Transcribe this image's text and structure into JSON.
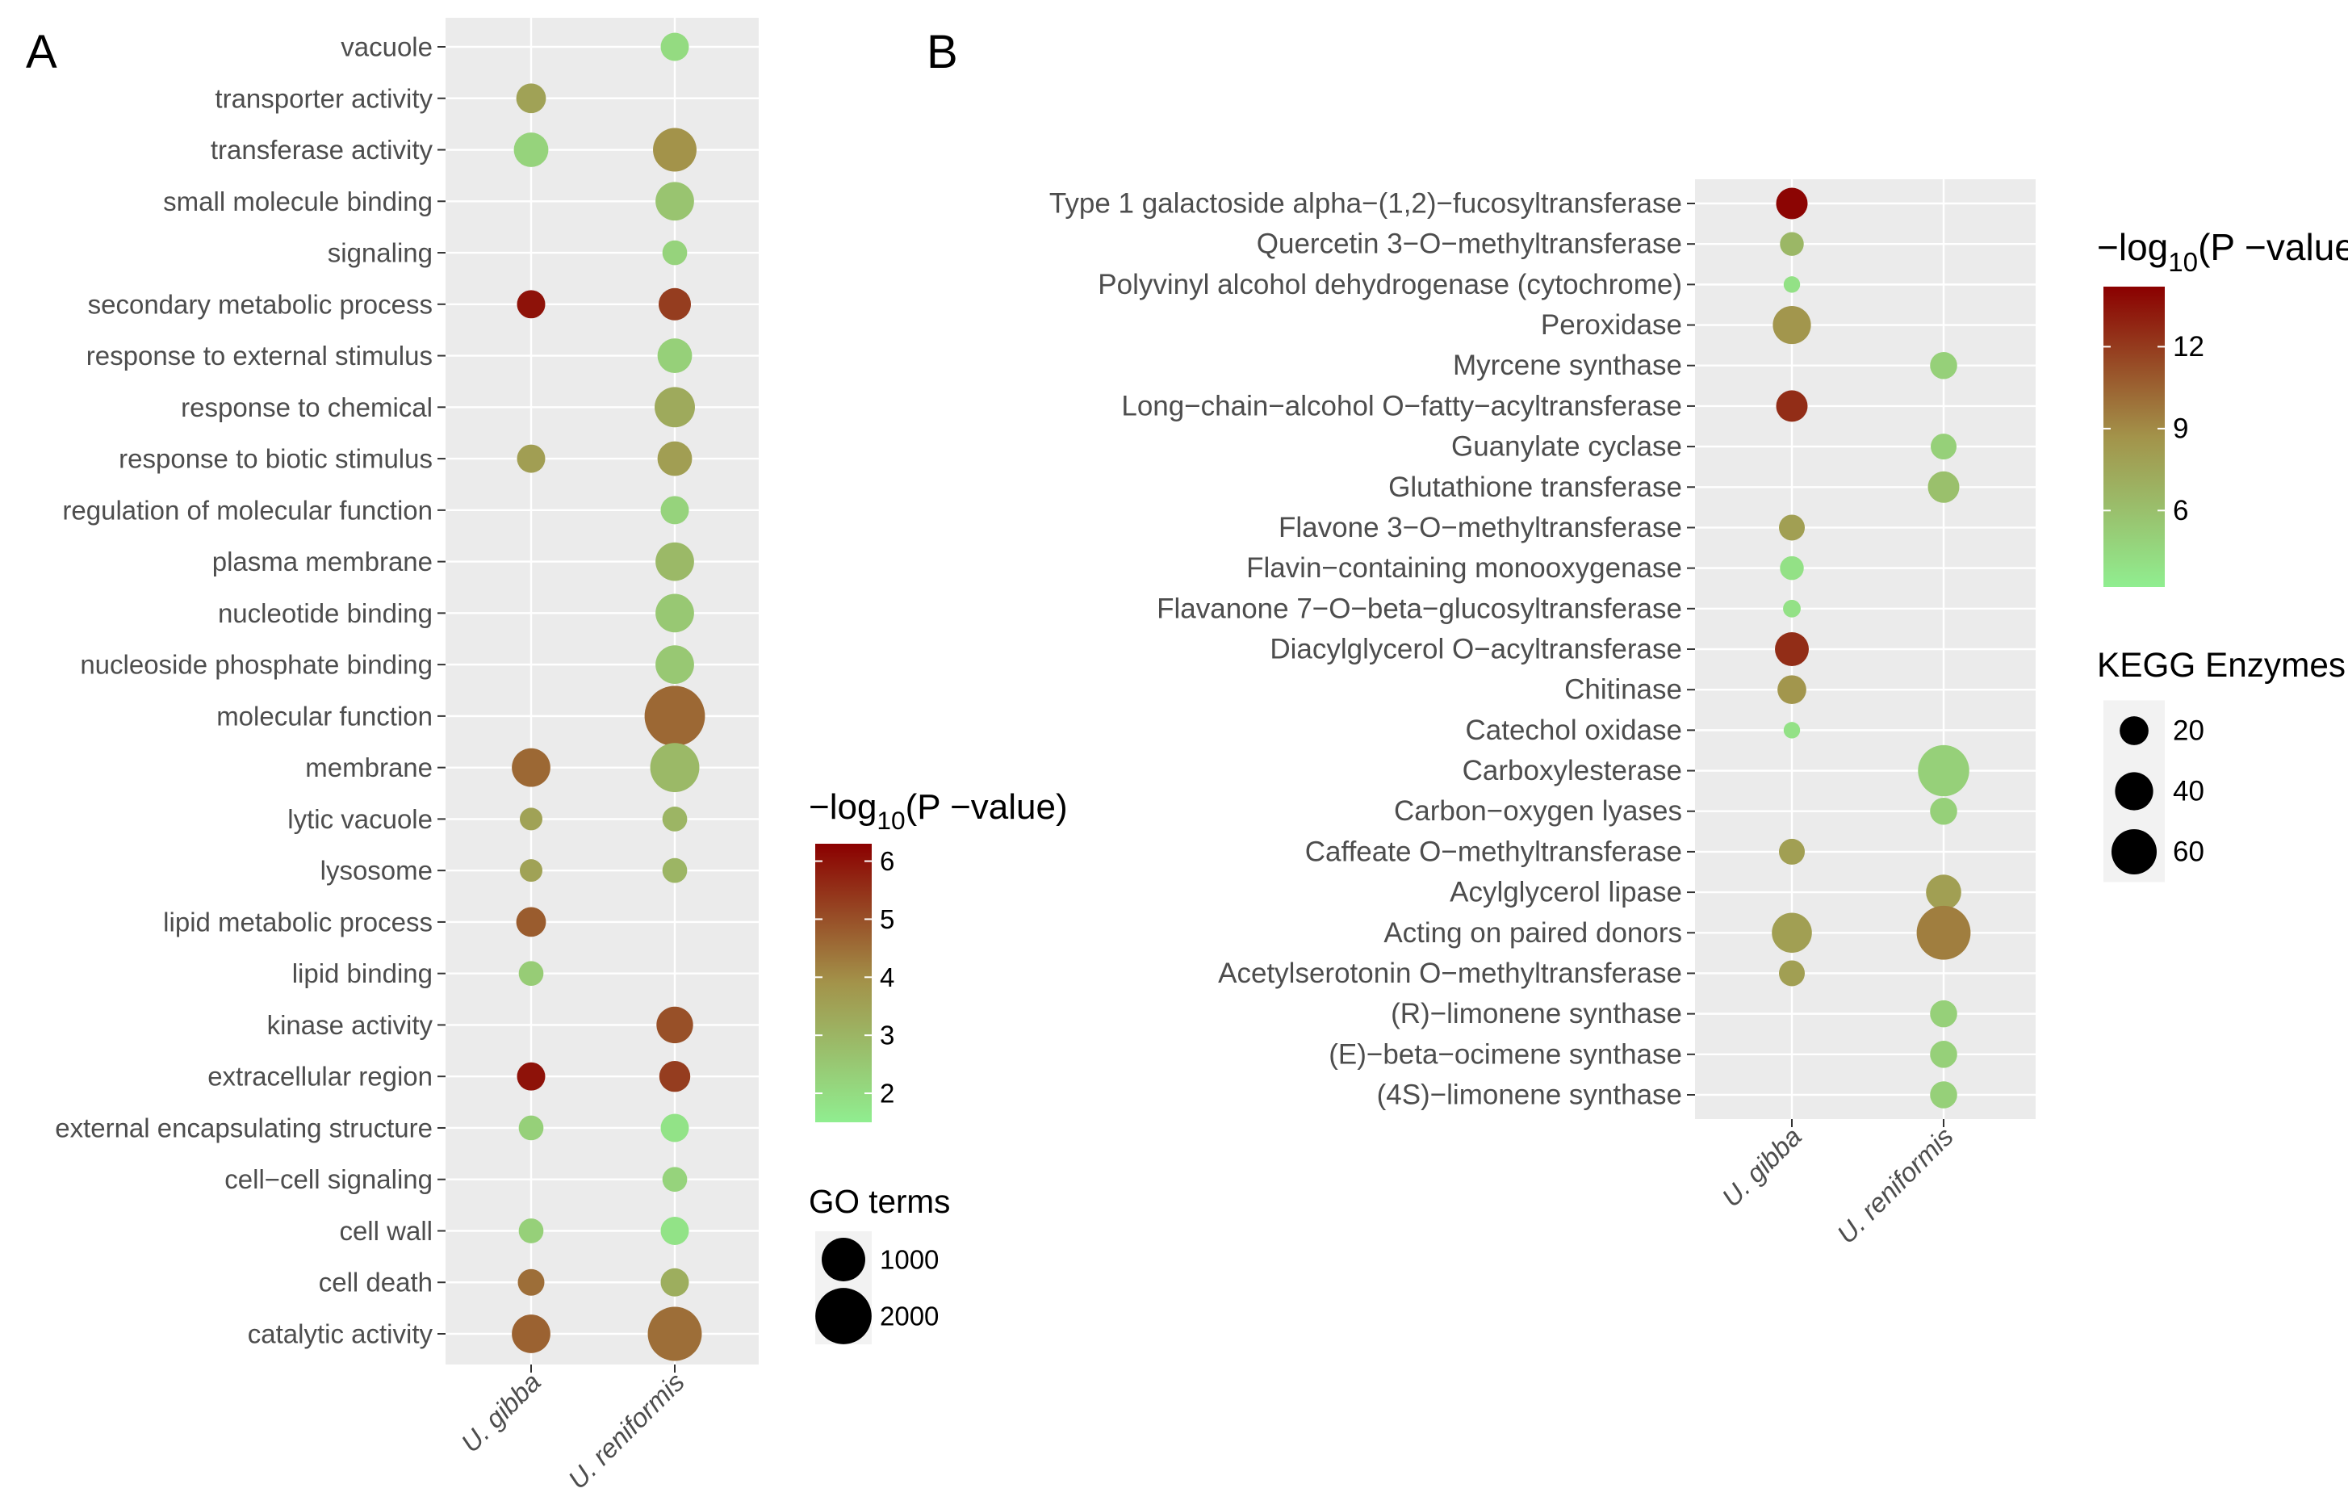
{
  "chart_data": [
    {
      "panel": "A",
      "type": "scatter",
      "title": "",
      "xlabel": "",
      "ylabel": "",
      "x_categories": [
        "U. gibba",
        "U. reniformis"
      ],
      "y_categories": [
        "vacuole",
        "transporter activity",
        "transferase activity",
        "small molecule binding",
        "signaling",
        "secondary metabolic process",
        "response to external stimulus",
        "response to chemical",
        "response to biotic stimulus",
        "regulation of molecular function",
        "plasma membrane",
        "nucleotide binding",
        "nucleoside phosphate binding",
        "molecular function",
        "membrane",
        "lytic vacuole",
        "lysosome",
        "lipid metabolic process",
        "lipid binding",
        "kinase activity",
        "extracellular region",
        "external encapsulating structure",
        "cell−cell signaling",
        "cell wall",
        "cell death",
        "catalytic activity"
      ],
      "points": [
        {
          "x": "U. reniformis",
          "y": "vacuole",
          "size": 250,
          "neglog10p": 2.0
        },
        {
          "x": "U. gibba",
          "y": "transporter activity",
          "size": 300,
          "neglog10p": 3.5
        },
        {
          "x": "U. gibba",
          "y": "transferase activity",
          "size": 500,
          "neglog10p": 2.2
        },
        {
          "x": "U. reniformis",
          "y": "transferase activity",
          "size": 1000,
          "neglog10p": 3.9
        },
        {
          "x": "U. reniformis",
          "y": "small molecule binding",
          "size": 700,
          "neglog10p": 2.6
        },
        {
          "x": "U. reniformis",
          "y": "signaling",
          "size": 150,
          "neglog10p": 2.2
        },
        {
          "x": "U. gibba",
          "y": "secondary metabolic process",
          "size": 250,
          "neglog10p": 6.0
        },
        {
          "x": "U. reniformis",
          "y": "secondary metabolic process",
          "size": 400,
          "neglog10p": 5.3
        },
        {
          "x": "U. reniformis",
          "y": "response to external stimulus",
          "size": 500,
          "neglog10p": 2.3
        },
        {
          "x": "U. reniformis",
          "y": "response to chemical",
          "size": 800,
          "neglog10p": 3.3
        },
        {
          "x": "U. gibba",
          "y": "response to biotic stimulus",
          "size": 250,
          "neglog10p": 3.6
        },
        {
          "x": "U. reniformis",
          "y": "response to biotic stimulus",
          "size": 500,
          "neglog10p": 3.6
        },
        {
          "x": "U. reniformis",
          "y": "regulation of molecular function",
          "size": 250,
          "neglog10p": 2.2
        },
        {
          "x": "U. reniformis",
          "y": "plasma membrane",
          "size": 700,
          "neglog10p": 2.9
        },
        {
          "x": "U. reniformis",
          "y": "nucleotide binding",
          "size": 700,
          "neglog10p": 2.5
        },
        {
          "x": "U. reniformis",
          "y": "nucleoside phosphate binding",
          "size": 700,
          "neglog10p": 2.5
        },
        {
          "x": "U. reniformis",
          "y": "molecular function",
          "size": 2400,
          "neglog10p": 4.6
        },
        {
          "x": "U. gibba",
          "y": "membrane",
          "size": 700,
          "neglog10p": 4.6
        },
        {
          "x": "U. reniformis",
          "y": "membrane",
          "size": 1400,
          "neglog10p": 2.9
        },
        {
          "x": "U. gibba",
          "y": "lytic vacuole",
          "size": 100,
          "neglog10p": 3.5
        },
        {
          "x": "U. reniformis",
          "y": "lytic vacuole",
          "size": 150,
          "neglog10p": 3.0
        },
        {
          "x": "U. gibba",
          "y": "lysosome",
          "size": 100,
          "neglog10p": 3.5
        },
        {
          "x": "U. reniformis",
          "y": "lysosome",
          "size": 150,
          "neglog10p": 3.0
        },
        {
          "x": "U. gibba",
          "y": "lipid metabolic process",
          "size": 300,
          "neglog10p": 4.8
        },
        {
          "x": "U. gibba",
          "y": "lipid binding",
          "size": 150,
          "neglog10p": 2.4
        },
        {
          "x": "U. reniformis",
          "y": "kinase activity",
          "size": 600,
          "neglog10p": 5.0
        },
        {
          "x": "U. gibba",
          "y": "extracellular region",
          "size": 250,
          "neglog10p": 6.0
        },
        {
          "x": "U. reniformis",
          "y": "extracellular region",
          "size": 350,
          "neglog10p": 5.3
        },
        {
          "x": "U. gibba",
          "y": "external encapsulating structure",
          "size": 150,
          "neglog10p": 2.3
        },
        {
          "x": "U. reniformis",
          "y": "external encapsulating structure",
          "size": 250,
          "neglog10p": 1.8
        },
        {
          "x": "U. reniformis",
          "y": "cell−cell signaling",
          "size": 150,
          "neglog10p": 2.2
        },
        {
          "x": "U. gibba",
          "y": "cell wall",
          "size": 150,
          "neglog10p": 2.3
        },
        {
          "x": "U. reniformis",
          "y": "cell wall",
          "size": 250,
          "neglog10p": 1.8
        },
        {
          "x": "U. gibba",
          "y": "cell death",
          "size": 200,
          "neglog10p": 4.5
        },
        {
          "x": "U. reniformis",
          "y": "cell death",
          "size": 250,
          "neglog10p": 3.2
        },
        {
          "x": "U. gibba",
          "y": "catalytic activity",
          "size": 700,
          "neglog10p": 4.7
        },
        {
          "x": "U. reniformis",
          "y": "catalytic activity",
          "size": 1800,
          "neglog10p": 4.5
        }
      ],
      "color_scale": {
        "title_prefix": "−log",
        "title_sub": "10",
        "title_suffix": "(P −value)",
        "min": 1.5,
        "max": 6.3,
        "ticks": [
          2,
          3,
          4,
          5,
          6
        ],
        "low_color": "#90EE90",
        "mid_color": "#A3934A",
        "high_color": "#8B0000"
      },
      "size_legend": {
        "title": "GO terms",
        "breaks": [
          1000,
          2000
        ]
      }
    },
    {
      "panel": "B",
      "type": "scatter",
      "title": "",
      "xlabel": "",
      "ylabel": "",
      "x_categories": [
        "U. gibba",
        "U. reniformis"
      ],
      "y_categories": [
        "Type 1 galactoside alpha−(1,2)−fucosyltransferase",
        "Quercetin 3−O−methyltransferase",
        "Polyvinyl alcohol dehydrogenase (cytochrome)",
        "Peroxidase",
        "Myrcene synthase",
        "Long−chain−alcohol O−fatty−acyltransferase",
        "Guanylate cyclase",
        "Glutathione transferase",
        "Flavone 3−O−methyltransferase",
        "Flavin−containing monooxygenase",
        "Flavanone 7−O−beta−glucosyltransferase",
        "Diacylglycerol O−acyltransferase",
        "Chitinase",
        "Catechol oxidase",
        "Carboxylesterase",
        "Carbon−oxygen lyases",
        "Caffeate O−methyltransferase",
        "Acylglycerol lipase",
        "Acting on paired donors",
        "Acetylserotonin O−methyltransferase",
        "(R)−limonene synthase",
        "(E)−beta−ocimene synthase",
        "(4S)−limonene synthase"
      ],
      "points": [
        {
          "x": "U. gibba",
          "y": "Type 1 galactoside alpha−(1,2)−fucosyltransferase",
          "size": 25,
          "neglog10p": 14.0
        },
        {
          "x": "U. gibba",
          "y": "Quercetin 3−O−methyltransferase",
          "size": 12,
          "neglog10p": 6.5
        },
        {
          "x": "U. gibba",
          "y": "Polyvinyl alcohol dehydrogenase (cytochrome)",
          "size": 4,
          "neglog10p": 4.0
        },
        {
          "x": "U. gibba",
          "y": "Peroxidase",
          "size": 40,
          "neglog10p": 8.5
        },
        {
          "x": "U. reniformis",
          "y": "Myrcene synthase",
          "size": 17,
          "neglog10p": 5.0
        },
        {
          "x": "U. gibba",
          "y": "Long−chain−alcohol O−fatty−acyltransferase",
          "size": 25,
          "neglog10p": 12.5
        },
        {
          "x": "U. reniformis",
          "y": "Guanylate cyclase",
          "size": 15,
          "neglog10p": 5.0
        },
        {
          "x": "U. reniformis",
          "y": "Glutathione transferase",
          "size": 25,
          "neglog10p": 6.0
        },
        {
          "x": "U. gibba",
          "y": "Flavone 3−O−methyltransferase",
          "size": 15,
          "neglog10p": 8.0
        },
        {
          "x": "U. gibba",
          "y": "Flavin−containing monooxygenase",
          "size": 12,
          "neglog10p": 4.0
        },
        {
          "x": "U. gibba",
          "y": "Flavanone 7−O−beta−glucosyltransferase",
          "size": 5,
          "neglog10p": 4.0
        },
        {
          "x": "U. gibba",
          "y": "Diacylglycerol O−acyltransferase",
          "size": 30,
          "neglog10p": 12.5
        },
        {
          "x": "U. gibba",
          "y": "Chitinase",
          "size": 20,
          "neglog10p": 8.5
        },
        {
          "x": "U. gibba",
          "y": "Catechol oxidase",
          "size": 4,
          "neglog10p": 4.0
        },
        {
          "x": "U. reniformis",
          "y": "Carboxylesterase",
          "size": 80,
          "neglog10p": 5.0
        },
        {
          "x": "U. reniformis",
          "y": "Carbon−oxygen lyases",
          "size": 17,
          "neglog10p": 5.0
        },
        {
          "x": "U. gibba",
          "y": "Caffeate O−methyltransferase",
          "size": 15,
          "neglog10p": 8.0
        },
        {
          "x": "U. reniformis",
          "y": "Acylglycerol lipase",
          "size": 33,
          "neglog10p": 8.0
        },
        {
          "x": "U. gibba",
          "y": "Acting on paired donors",
          "size": 45,
          "neglog10p": 8.0
        },
        {
          "x": "U. reniformis",
          "y": "Acting on paired donors",
          "size": 90,
          "neglog10p": 9.5
        },
        {
          "x": "U. gibba",
          "y": "Acetylserotonin O−methyltransferase",
          "size": 15,
          "neglog10p": 8.0
        },
        {
          "x": "U. reniformis",
          "y": "(R)−limonene synthase",
          "size": 17,
          "neglog10p": 5.0
        },
        {
          "x": "U. reniformis",
          "y": "(E)−beta−ocimene synthase",
          "size": 17,
          "neglog10p": 5.0
        },
        {
          "x": "U. reniformis",
          "y": "(4S)−limonene synthase",
          "size": 17,
          "neglog10p": 5.0
        }
      ],
      "color_scale": {
        "title_prefix": "−log",
        "title_sub": "10",
        "title_suffix": "(P −value)",
        "min": 3.2,
        "max": 14.2,
        "ticks": [
          6,
          9,
          12
        ],
        "low_color": "#90EE90",
        "mid_color": "#A3934A",
        "high_color": "#8B0000"
      },
      "size_legend": {
        "title": "KEGG Enzymes",
        "breaks": [
          20,
          40,
          60
        ]
      }
    }
  ]
}
